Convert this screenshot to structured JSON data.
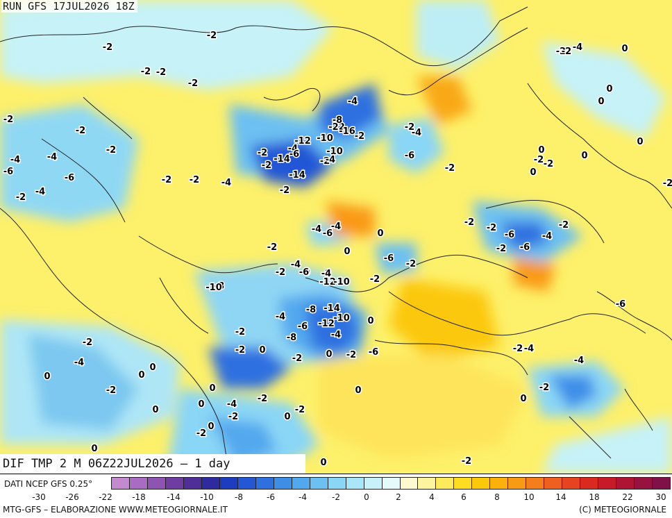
{
  "header": {
    "title": "RUN GFS 17JUL2026 18Z"
  },
  "footer": {
    "map_title": "DIF TMP 2 M 06Z22JUL2026 — 1 day",
    "source": "DATI NCEP GFS 0.25°",
    "credit_left": "MTG-GFS – ELABORAZIONE WWW.METEOGIORNALE.IT",
    "credit_right": "(C) METEOGIORNALE"
  },
  "legend": {
    "colors": [
      "#c48ad0",
      "#a86cc2",
      "#8d54b2",
      "#6f3ca2",
      "#4f2e9a",
      "#2e2aa0",
      "#1e3cc0",
      "#2456d6",
      "#2e70e0",
      "#3e8ee8",
      "#52a8ee",
      "#6cc0f2",
      "#8ad6f6",
      "#a8e6f8",
      "#c8f2fa",
      "#e6fafc",
      "#fefad0",
      "#fef49e",
      "#fdeb5c",
      "#fddc22",
      "#fcc80a",
      "#fbb00a",
      "#f99a14",
      "#f57e1c",
      "#ef6020",
      "#e64420",
      "#da2a20",
      "#c81a28",
      "#b01434",
      "#981240",
      "#801048"
    ],
    "ticks": [
      "-30",
      "-26",
      "-22",
      "-18",
      "-14",
      "-10",
      "-8",
      "-6",
      "-4",
      "-2",
      "0",
      "2",
      "4",
      "6",
      "8",
      "10",
      "14",
      "18",
      "22",
      "30"
    ]
  },
  "labels": [
    {
      "t": "-2"
    },
    {
      "t": "-2"
    },
    {
      "t": "-2"
    },
    {
      "t": "-2"
    },
    {
      "t": "-2"
    },
    {
      "t": "-2"
    },
    {
      "t": "-2"
    },
    {
      "t": "-2"
    },
    {
      "t": "-4"
    },
    {
      "t": "-6"
    },
    {
      "t": "-4"
    },
    {
      "t": "-6"
    },
    {
      "t": "-2"
    },
    {
      "t": "-4"
    },
    {
      "t": "-2"
    },
    {
      "t": "-2"
    },
    {
      "t": "-2"
    },
    {
      "t": "-2"
    },
    {
      "t": "-4"
    },
    {
      "t": "-2"
    },
    {
      "t": "-14"
    },
    {
      "t": "-4"
    },
    {
      "t": "-6"
    },
    {
      "t": "-12"
    },
    {
      "t": "-10"
    },
    {
      "t": "-10"
    },
    {
      "t": "-2"
    },
    {
      "t": "-14"
    },
    {
      "t": "-4"
    },
    {
      "t": "-2"
    },
    {
      "t": "-22"
    },
    {
      "t": "-16"
    },
    {
      "t": "-8"
    },
    {
      "t": "-4"
    },
    {
      "t": "-2"
    },
    {
      "t": "-4"
    },
    {
      "t": "-6"
    },
    {
      "t": "-2"
    },
    {
      "t": "-2"
    },
    {
      "t": "-2"
    },
    {
      "t": "-2"
    },
    {
      "t": "-4"
    },
    {
      "t": "0"
    },
    {
      "t": "0"
    },
    {
      "t": "0"
    },
    {
      "t": "0"
    },
    {
      "t": "0"
    },
    {
      "t": "-2"
    },
    {
      "t": "0"
    },
    {
      "t": "0"
    },
    {
      "t": "-2"
    },
    {
      "t": "-4"
    },
    {
      "t": "-6"
    },
    {
      "t": "-4"
    },
    {
      "t": "-2"
    },
    {
      "t": "-2"
    },
    {
      "t": "-6"
    },
    {
      "t": "-4"
    },
    {
      "t": "-2"
    },
    {
      "t": "0"
    },
    {
      "t": "-2"
    },
    {
      "t": "-6"
    },
    {
      "t": "-2"
    },
    {
      "t": "-2"
    },
    {
      "t": "0"
    },
    {
      "t": "-6"
    },
    {
      "t": "-4"
    },
    {
      "t": "-2"
    },
    {
      "t": "0"
    },
    {
      "t": "-2"
    },
    {
      "t": "-8"
    },
    {
      "t": "-10"
    },
    {
      "t": "-4"
    },
    {
      "t": "-6"
    },
    {
      "t": "-12"
    },
    {
      "t": "-10"
    },
    {
      "t": "-2"
    },
    {
      "t": "-14"
    },
    {
      "t": "-8"
    },
    {
      "t": "-12"
    },
    {
      "t": "-4"
    },
    {
      "t": "-10"
    },
    {
      "t": "-6"
    },
    {
      "t": "-4"
    },
    {
      "t": "0"
    },
    {
      "t": "-8"
    },
    {
      "t": "-2"
    },
    {
      "t": "-2"
    },
    {
      "t": "0"
    },
    {
      "t": "-2"
    },
    {
      "t": "0"
    },
    {
      "t": "-2"
    },
    {
      "t": "-4"
    },
    {
      "t": "-6"
    },
    {
      "t": "-2"
    },
    {
      "t": "-4"
    },
    {
      "t": "-4"
    },
    {
      "t": "-6"
    },
    {
      "t": "-2"
    },
    {
      "t": "0"
    },
    {
      "t": "-2"
    },
    {
      "t": "-4"
    },
    {
      "t": "0"
    },
    {
      "t": "0"
    },
    {
      "t": "0"
    },
    {
      "t": "-2"
    },
    {
      "t": "0"
    },
    {
      "t": "0"
    },
    {
      "t": "0"
    },
    {
      "t": "-4"
    },
    {
      "t": "-2"
    },
    {
      "t": "-2"
    },
    {
      "t": "-2"
    },
    {
      "t": "0"
    },
    {
      "t": "0"
    },
    {
      "t": "-2"
    },
    {
      "t": "0"
    },
    {
      "t": "0"
    },
    {
      "t": "0"
    },
    {
      "t": "-2"
    }
  ]
}
